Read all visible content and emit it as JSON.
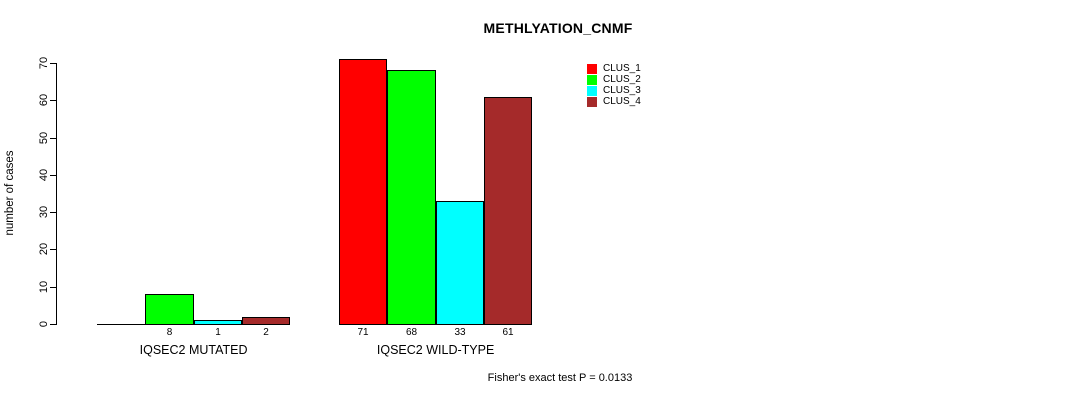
{
  "title": "METHLYATION_CNMF",
  "footer": "Fisher's exact test P = 0.0133",
  "chart_data": {
    "type": "bar",
    "title": "METHLYATION_CNMF",
    "xlabel": "",
    "ylabel": "number of cases",
    "ylim": [
      0,
      70
    ],
    "yticks": [
      0,
      10,
      20,
      30,
      40,
      50,
      60,
      70
    ],
    "grid": false,
    "legend_position": "top-right",
    "categories": [
      "IQSEC2 MUTATED",
      "IQSEC2 WILD-TYPE"
    ],
    "series": [
      {
        "name": "CLUS_1",
        "color": "#ff0000",
        "values": [
          0,
          71
        ],
        "bar_labels": [
          "",
          "71"
        ]
      },
      {
        "name": "CLUS_2",
        "color": "#00ff00",
        "values": [
          8,
          68
        ],
        "bar_labels": [
          "8",
          "68"
        ]
      },
      {
        "name": "CLUS_3",
        "color": "#00ffff",
        "values": [
          1,
          33
        ],
        "bar_labels": [
          "1",
          "33"
        ]
      },
      {
        "name": "CLUS_4",
        "color": "#a52a2a",
        "values": [
          2,
          61
        ],
        "bar_labels": [
          "2",
          "61"
        ]
      }
    ],
    "annotation": "Fisher's exact test P = 0.0133"
  }
}
